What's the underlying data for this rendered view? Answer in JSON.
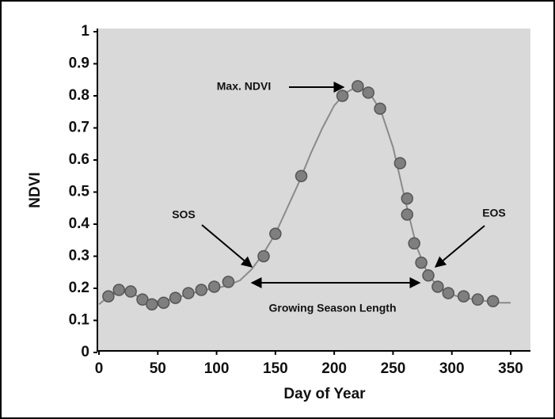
{
  "chart_data": {
    "type": "scatter",
    "x_label": "Day of Year",
    "y_label": "NDVI",
    "xlim": [
      0,
      350
    ],
    "xticks": [
      0,
      50,
      100,
      150,
      200,
      250,
      300,
      350
    ],
    "ylim": [
      0,
      1
    ],
    "yticks": [
      0,
      0.1,
      0.2,
      0.3,
      0.4,
      0.5,
      0.6,
      0.7,
      0.8,
      0.9,
      1
    ],
    "series": [
      {
        "color": "#7f7f7f",
        "x": [
          8,
          17,
          27,
          37,
          45,
          55,
          65,
          76,
          87,
          98,
          110,
          140,
          150,
          172,
          207,
          220,
          229,
          239,
          256,
          262,
          262,
          268,
          274,
          280,
          288,
          297,
          310,
          322,
          335
        ],
        "values": [
          0.175,
          0.195,
          0.19,
          0.165,
          0.15,
          0.155,
          0.17,
          0.185,
          0.195,
          0.205,
          0.22,
          0.3,
          0.37,
          0.55,
          0.8,
          0.83,
          0.81,
          0.76,
          0.59,
          0.48,
          0.43,
          0.34,
          0.28,
          0.24,
          0.205,
          0.185,
          0.175,
          0.165,
          0.16
        ]
      },
      {
        "type": "line",
        "color": "#8a8a8a",
        "x": [
          0,
          10,
          20,
          30,
          40,
          50,
          60,
          70,
          80,
          90,
          100,
          110,
          120,
          130,
          140,
          150,
          160,
          170,
          180,
          190,
          200,
          210,
          220,
          230,
          240,
          250,
          260,
          270,
          280,
          290,
          300,
          310,
          320,
          330,
          340,
          350
        ],
        "values": [
          0.15,
          0.18,
          0.19,
          0.18,
          0.165,
          0.16,
          0.165,
          0.175,
          0.185,
          0.195,
          0.2,
          0.21,
          0.225,
          0.26,
          0.31,
          0.37,
          0.45,
          0.53,
          0.62,
          0.7,
          0.77,
          0.81,
          0.83,
          0.81,
          0.75,
          0.64,
          0.48,
          0.33,
          0.24,
          0.2,
          0.18,
          0.17,
          0.165,
          0.16,
          0.155,
          0.155
        ]
      }
    ],
    "annotations": [
      "Max. NDVI",
      "SOS",
      "EOS",
      "Growing Season Length"
    ]
  }
}
